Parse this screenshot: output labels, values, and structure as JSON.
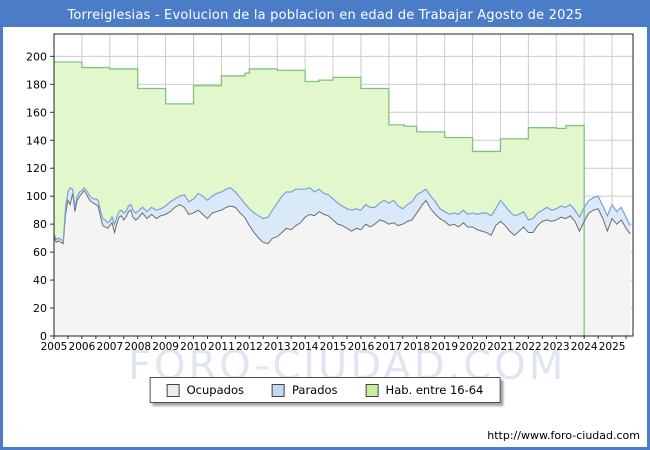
{
  "window": {
    "title": "Torreiglesias - Evolucion de la poblacion en edad de Trabajar Agosto de 2025"
  },
  "watermark": "FORO-CIUDAD.COM",
  "footer": {
    "url": "http://www.foro-ciudad.com"
  },
  "colors": {
    "frame_blue": "#4a7cc8",
    "grid": "#cccccc",
    "plot_border": "#222222",
    "hab_line": "#82c182",
    "hab_fill": "#e3f7cd",
    "parados_line": "#7ba2d2",
    "parados_fill": "#d9e9f9",
    "ocupados_line": "#6e6e6e",
    "ocupados_fill": "#f4f4f4"
  },
  "legend": {
    "items": [
      {
        "label": "Ocupados",
        "fill": "#ececec"
      },
      {
        "label": "Parados",
        "fill": "#c3d9f0"
      },
      {
        "label": "Hab. entre 16-64",
        "fill": "#c9ef9e"
      }
    ]
  },
  "chart_data": {
    "type": "area",
    "title": "Torreiglesias - Evolucion de la poblacion en edad de Trabajar Agosto de 2025",
    "xlabel": "",
    "ylabel": "",
    "x_axis": {
      "min": 2005,
      "max": 2025.75,
      "ticks": [
        2005,
        2006,
        2007,
        2008,
        2009,
        2010,
        2011,
        2012,
        2013,
        2014,
        2015,
        2016,
        2017,
        2018,
        2019,
        2020,
        2021,
        2022,
        2023,
        2024,
        2025
      ]
    },
    "y_axis": {
      "min": 0,
      "max": 216,
      "ticks": [
        0,
        20,
        40,
        60,
        80,
        100,
        120,
        140,
        160,
        180,
        200
      ]
    },
    "grid": true,
    "legend_position": "bottom",
    "series": [
      {
        "name": "Hab. entre 16-64",
        "render": "step-area",
        "note": "annual working-age population; steps per year, series ends at 2024.0",
        "points": [
          [
            2005,
            196
          ],
          [
            2006,
            192
          ],
          [
            2007,
            191
          ],
          [
            2008,
            177
          ],
          [
            2009,
            166
          ],
          [
            2010,
            179
          ],
          [
            2011,
            186
          ],
          [
            2011.85,
            188
          ],
          [
            2012,
            191
          ],
          [
            2013,
            190
          ],
          [
            2014,
            182
          ],
          [
            2014.5,
            183
          ],
          [
            2015,
            185
          ],
          [
            2016,
            177
          ],
          [
            2017,
            151
          ],
          [
            2017.55,
            150
          ],
          [
            2018,
            146
          ],
          [
            2019,
            142
          ],
          [
            2020,
            132
          ],
          [
            2021,
            141
          ],
          [
            2022,
            149
          ],
          [
            2023,
            148.5
          ],
          [
            2023.35,
            150.5
          ],
          [
            2024,
            0
          ]
        ]
      },
      {
        "name": "Ocupados / Parados (stacked)",
        "render": "stacked-band",
        "note": "triples [x, ocupados, ocupados+parados] approx monthly",
        "points": [
          [
            2005.0,
            71,
            73
          ],
          [
            2005.08,
            67,
            69
          ],
          [
            2005.17,
            68,
            70
          ],
          [
            2005.25,
            67,
            69
          ],
          [
            2005.33,
            66,
            68
          ],
          [
            2005.42,
            88,
            93
          ],
          [
            2005.5,
            97,
            103
          ],
          [
            2005.58,
            94,
            106
          ],
          [
            2005.67,
            102,
            105
          ],
          [
            2005.75,
            89,
            92
          ],
          [
            2005.83,
            97,
            100
          ],
          [
            2005.92,
            100,
            103
          ],
          [
            2006.0,
            102,
            104
          ],
          [
            2006.08,
            104,
            106
          ],
          [
            2006.17,
            101,
            104
          ],
          [
            2006.25,
            98,
            101
          ],
          [
            2006.33,
            96,
            99
          ],
          [
            2006.42,
            95,
            98
          ],
          [
            2006.5,
            94,
            98
          ],
          [
            2006.58,
            93,
            97
          ],
          [
            2006.67,
            85,
            89
          ],
          [
            2006.75,
            79,
            84
          ],
          [
            2006.83,
            78,
            83
          ],
          [
            2006.92,
            77,
            81
          ],
          [
            2007.0,
            79,
            82
          ],
          [
            2007.08,
            81,
            85
          ],
          [
            2007.17,
            74,
            80
          ],
          [
            2007.25,
            80,
            85
          ],
          [
            2007.33,
            85,
            89
          ],
          [
            2007.42,
            86,
            90
          ],
          [
            2007.5,
            83,
            88
          ],
          [
            2007.58,
            85,
            89
          ],
          [
            2007.67,
            89,
            93
          ],
          [
            2007.75,
            90,
            94
          ],
          [
            2007.83,
            85,
            90
          ],
          [
            2007.92,
            83,
            88
          ],
          [
            2008.0,
            84,
            89
          ],
          [
            2008.17,
            88,
            92
          ],
          [
            2008.33,
            84,
            89
          ],
          [
            2008.5,
            87,
            92
          ],
          [
            2008.67,
            84,
            90
          ],
          [
            2008.83,
            86,
            91
          ],
          [
            2009.0,
            87,
            93
          ],
          [
            2009.17,
            89,
            96
          ],
          [
            2009.33,
            92,
            98
          ],
          [
            2009.5,
            94,
            100
          ],
          [
            2009.67,
            92,
            101
          ],
          [
            2009.83,
            87,
            96
          ],
          [
            2010.0,
            88,
            98
          ],
          [
            2010.17,
            90,
            102
          ],
          [
            2010.33,
            87,
            100
          ],
          [
            2010.5,
            84,
            97
          ],
          [
            2010.67,
            88,
            100
          ],
          [
            2010.83,
            89,
            102
          ],
          [
            2011.0,
            90,
            103
          ],
          [
            2011.17,
            92,
            105
          ],
          [
            2011.33,
            93,
            106
          ],
          [
            2011.5,
            92,
            103
          ],
          [
            2011.67,
            88,
            99
          ],
          [
            2011.83,
            85,
            95
          ],
          [
            2012.0,
            79,
            91
          ],
          [
            2012.17,
            74,
            88
          ],
          [
            2012.33,
            70,
            86
          ],
          [
            2012.5,
            67,
            84
          ],
          [
            2012.67,
            66,
            85
          ],
          [
            2012.83,
            70,
            90
          ],
          [
            2013.0,
            71,
            95
          ],
          [
            2013.17,
            74,
            100
          ],
          [
            2013.33,
            77,
            103
          ],
          [
            2013.5,
            76,
            103
          ],
          [
            2013.67,
            79,
            105
          ],
          [
            2013.83,
            81,
            105
          ],
          [
            2014.0,
            85,
            105
          ],
          [
            2014.17,
            87,
            106
          ],
          [
            2014.33,
            86,
            103
          ],
          [
            2014.5,
            89,
            105
          ],
          [
            2014.67,
            87,
            102
          ],
          [
            2014.83,
            86,
            101
          ],
          [
            2015.0,
            83,
            98
          ],
          [
            2015.17,
            80,
            95
          ],
          [
            2015.33,
            79,
            93
          ],
          [
            2015.5,
            77,
            91
          ],
          [
            2015.67,
            75,
            90
          ],
          [
            2015.83,
            77,
            91
          ],
          [
            2016.0,
            76,
            90
          ],
          [
            2016.17,
            80,
            94
          ],
          [
            2016.33,
            78,
            92
          ],
          [
            2016.5,
            80,
            92
          ],
          [
            2016.67,
            83,
            95
          ],
          [
            2016.83,
            82,
            97
          ],
          [
            2017.0,
            80,
            95
          ],
          [
            2017.17,
            81,
            97
          ],
          [
            2017.33,
            79,
            93
          ],
          [
            2017.5,
            80,
            91
          ],
          [
            2017.67,
            82,
            94
          ],
          [
            2017.83,
            83,
            96
          ],
          [
            2018.0,
            88,
            101
          ],
          [
            2018.17,
            93,
            103
          ],
          [
            2018.33,
            97,
            105
          ],
          [
            2018.5,
            91,
            100
          ],
          [
            2018.67,
            87,
            96
          ],
          [
            2018.83,
            84,
            91
          ],
          [
            2019.0,
            82,
            89
          ],
          [
            2019.17,
            79,
            87
          ],
          [
            2019.33,
            80,
            88
          ],
          [
            2019.5,
            78,
            87
          ],
          [
            2019.67,
            81,
            90
          ],
          [
            2019.83,
            78,
            87
          ],
          [
            2020.0,
            78,
            88
          ],
          [
            2020.17,
            76,
            87
          ],
          [
            2020.33,
            75,
            88
          ],
          [
            2020.5,
            74,
            88
          ],
          [
            2020.67,
            72,
            86
          ],
          [
            2020.83,
            79,
            91
          ],
          [
            2021.0,
            82,
            97
          ],
          [
            2021.17,
            79,
            93
          ],
          [
            2021.33,
            75,
            89
          ],
          [
            2021.5,
            72,
            86
          ],
          [
            2021.67,
            75,
            87
          ],
          [
            2021.83,
            78,
            89
          ],
          [
            2022.0,
            74,
            83
          ],
          [
            2022.17,
            74,
            84
          ],
          [
            2022.33,
            79,
            88
          ],
          [
            2022.5,
            82,
            90
          ],
          [
            2022.67,
            83,
            92
          ],
          [
            2022.83,
            82,
            90
          ],
          [
            2023.0,
            83,
            91
          ],
          [
            2023.17,
            85,
            93
          ],
          [
            2023.33,
            84,
            92
          ],
          [
            2023.5,
            86,
            94
          ],
          [
            2023.67,
            82,
            90
          ],
          [
            2023.83,
            75,
            85
          ],
          [
            2024.0,
            82,
            92
          ],
          [
            2024.17,
            88,
            97
          ],
          [
            2024.33,
            90,
            99
          ],
          [
            2024.5,
            91,
            100
          ],
          [
            2024.67,
            84,
            93
          ],
          [
            2024.83,
            75,
            86
          ],
          [
            2025.0,
            84,
            94
          ],
          [
            2025.17,
            80,
            89
          ],
          [
            2025.33,
            83,
            92
          ],
          [
            2025.5,
            77,
            85
          ],
          [
            2025.65,
            73,
            79
          ]
        ]
      }
    ]
  }
}
